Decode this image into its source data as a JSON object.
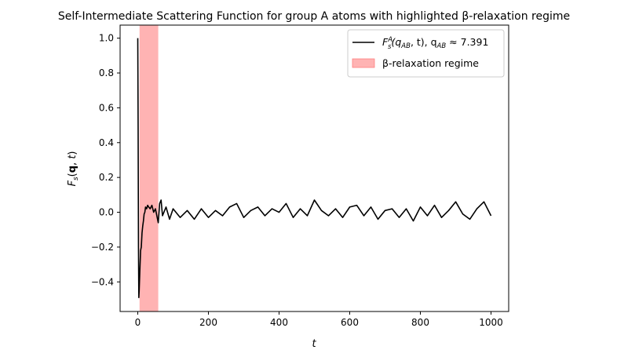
{
  "chart_data": {
    "type": "line",
    "title": "Self-Intermediate Scattering Function for group A atoms with highlighted β-relaxation regime",
    "xlabel": "t",
    "ylabel": "F_s(q, t)",
    "xlim": [
      -50,
      1050
    ],
    "ylim": [
      -0.57,
      1.075
    ],
    "xticks": [
      0,
      200,
      400,
      600,
      800,
      1000
    ],
    "yticks": [
      -0.4,
      -0.2,
      0.0,
      0.2,
      0.4,
      0.6,
      0.8,
      1.0
    ],
    "xtick_labels": [
      "0",
      "200",
      "400",
      "600",
      "800",
      "1000"
    ],
    "ytick_labels": [
      "−0.4",
      "−0.2",
      "0.0",
      "0.2",
      "0.4",
      "0.6",
      "0.8",
      "1.0"
    ],
    "grid": false,
    "legend_position": "top-right",
    "series": [
      {
        "name": "F_s^A(q_AB, t), q_AB ≈ 7.391",
        "color": "#000000",
        "x": [
          0,
          1,
          2,
          3,
          4,
          6,
          8,
          10,
          12,
          14,
          16,
          18,
          20,
          22,
          25,
          28,
          31,
          35,
          40,
          45,
          50,
          55,
          58,
          62,
          66,
          70,
          80,
          90,
          100,
          120,
          140,
          160,
          180,
          200,
          220,
          240,
          260,
          280,
          300,
          320,
          340,
          360,
          380,
          400,
          420,
          440,
          460,
          480,
          500,
          520,
          540,
          560,
          580,
          600,
          620,
          640,
          660,
          680,
          700,
          720,
          740,
          760,
          780,
          800,
          820,
          840,
          860,
          880,
          900,
          920,
          940,
          960,
          980,
          1000
        ],
        "values": [
          1.0,
          0.5,
          -0.2,
          -0.49,
          -0.45,
          -0.33,
          -0.22,
          -0.2,
          -0.12,
          -0.08,
          -0.05,
          -0.01,
          0.0,
          0.03,
          0.02,
          0.04,
          0.03,
          0.02,
          0.04,
          0.0,
          0.02,
          -0.03,
          -0.06,
          0.05,
          0.07,
          -0.02,
          0.03,
          -0.04,
          0.02,
          -0.03,
          0.01,
          -0.04,
          0.02,
          -0.03,
          0.01,
          -0.02,
          0.03,
          0.05,
          -0.03,
          0.01,
          0.03,
          -0.02,
          0.02,
          0.0,
          0.05,
          -0.03,
          0.02,
          -0.02,
          0.07,
          0.01,
          -0.02,
          0.02,
          -0.03,
          0.03,
          0.04,
          -0.02,
          0.03,
          -0.04,
          0.01,
          0.02,
          -0.03,
          0.02,
          -0.05,
          0.03,
          -0.02,
          0.04,
          -0.03,
          0.01,
          0.06,
          -0.01,
          -0.04,
          0.02,
          0.06,
          -0.02
        ]
      }
    ],
    "spans": [
      {
        "name": "β-relaxation regime",
        "x0": 5,
        "x1": 58,
        "color": "#ff9999",
        "opacity": 0.75
      }
    ],
    "legend": [
      {
        "kind": "line",
        "text_main": "F",
        "text_sub1": "s",
        "text_sup": "A",
        "text_after1": "(q",
        "text_sub2": "AB",
        "text_after2": ", t), q",
        "text_sub3": "AB",
        "text_after3": " ≈ 7.391"
      },
      {
        "kind": "patch",
        "text": "β-relaxation regime"
      }
    ]
  }
}
